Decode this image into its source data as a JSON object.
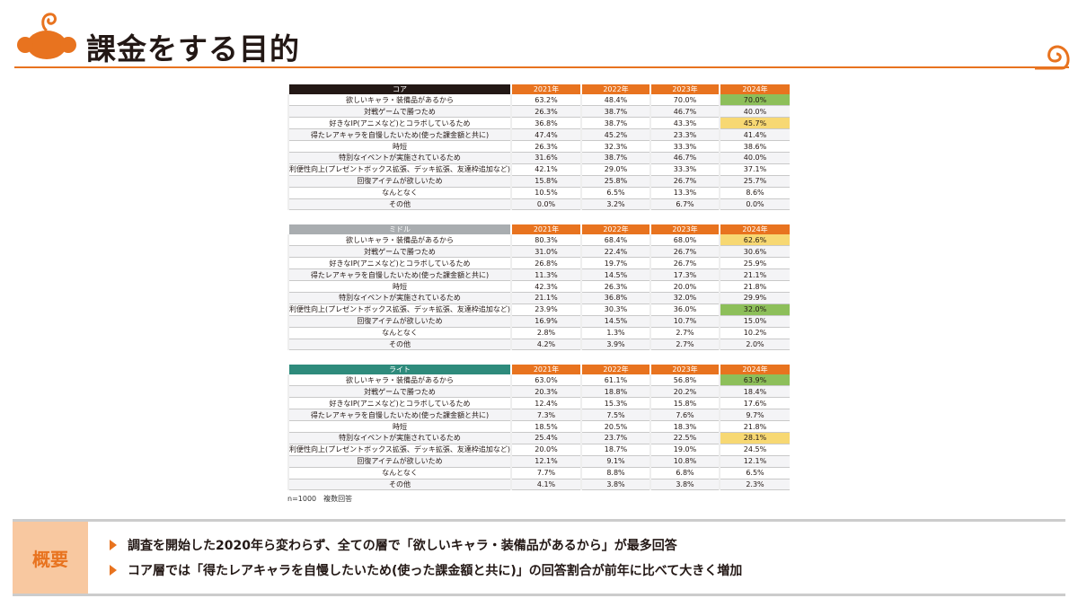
{
  "header": {
    "title": "課金をする目的"
  },
  "colors": {
    "accent": "#e8731f",
    "core": "#231815",
    "middle": "#a9adb0",
    "light": "#2e8b7c",
    "highlight_green": "#8dbf5a",
    "highlight_yellow": "#f7d873"
  },
  "years": [
    "2021年",
    "2022年",
    "2023年",
    "2024年"
  ],
  "row_labels": [
    "欲しいキャラ・装備品があるから",
    "対戦ゲームで勝つため",
    "好きなIP(アニメなど)とコラボしているため",
    "得たレアキャラを自慢したいため(使った課金額と共に)",
    "時短",
    "特別なイベントが実施されているため",
    "利便性向上(プレゼントボックス拡張、デッキ拡張、友達枠追加など)",
    "回復アイテムが欲しいため",
    "なんとなく",
    "その他"
  ],
  "tables": [
    {
      "segment": "コア",
      "color": "#231815",
      "rows": [
        [
          "63.2%",
          "48.4%",
          "70.0%",
          "70.0%"
        ],
        [
          "26.3%",
          "38.7%",
          "46.7%",
          "40.0%"
        ],
        [
          "36.8%",
          "38.7%",
          "43.3%",
          "45.7%"
        ],
        [
          "47.4%",
          "45.2%",
          "23.3%",
          "41.4%"
        ],
        [
          "26.3%",
          "32.3%",
          "33.3%",
          "38.6%"
        ],
        [
          "31.6%",
          "38.7%",
          "46.7%",
          "40.0%"
        ],
        [
          "42.1%",
          "29.0%",
          "33.3%",
          "37.1%"
        ],
        [
          "15.8%",
          "25.8%",
          "26.7%",
          "25.7%"
        ],
        [
          "10.5%",
          "6.5%",
          "13.3%",
          "8.6%"
        ],
        [
          "0.0%",
          "3.2%",
          "6.7%",
          "0.0%"
        ]
      ],
      "highlights": {
        "0": "green",
        "2": "yellow"
      }
    },
    {
      "segment": "ミドル",
      "color": "#a9adb0",
      "rows": [
        [
          "80.3%",
          "68.4%",
          "68.0%",
          "62.6%"
        ],
        [
          "31.0%",
          "22.4%",
          "26.7%",
          "30.6%"
        ],
        [
          "26.8%",
          "19.7%",
          "26.7%",
          "25.9%"
        ],
        [
          "11.3%",
          "14.5%",
          "17.3%",
          "21.1%"
        ],
        [
          "42.3%",
          "26.3%",
          "20.0%",
          "21.8%"
        ],
        [
          "21.1%",
          "36.8%",
          "32.0%",
          "29.9%"
        ],
        [
          "23.9%",
          "30.3%",
          "36.0%",
          "32.0%"
        ],
        [
          "16.9%",
          "14.5%",
          "10.7%",
          "15.0%"
        ],
        [
          "2.8%",
          "1.3%",
          "2.7%",
          "10.2%"
        ],
        [
          "4.2%",
          "3.9%",
          "2.7%",
          "2.0%"
        ]
      ],
      "highlights": {
        "0": "yellow",
        "6": "green"
      }
    },
    {
      "segment": "ライト",
      "color": "#2e8b7c",
      "rows": [
        [
          "63.0%",
          "61.1%",
          "56.8%",
          "63.9%"
        ],
        [
          "20.3%",
          "18.8%",
          "20.2%",
          "18.4%"
        ],
        [
          "12.4%",
          "15.3%",
          "15.8%",
          "17.6%"
        ],
        [
          "7.3%",
          "7.5%",
          "7.6%",
          "9.7%"
        ],
        [
          "18.5%",
          "20.5%",
          "18.3%",
          "21.8%"
        ],
        [
          "25.4%",
          "23.7%",
          "22.5%",
          "28.1%"
        ],
        [
          "20.0%",
          "18.7%",
          "19.0%",
          "24.5%"
        ],
        [
          "12.1%",
          "9.1%",
          "10.8%",
          "12.1%"
        ],
        [
          "7.7%",
          "8.8%",
          "6.8%",
          "6.5%"
        ],
        [
          "4.1%",
          "3.8%",
          "3.8%",
          "2.3%"
        ]
      ],
      "highlights": {
        "0": "green",
        "5": "yellow"
      }
    }
  ],
  "note": "n=1000　複数回答",
  "summary": {
    "label": "概要",
    "items": [
      "調査を開始した2020年ら変わらず、全ての層で「欲しいキャラ・装備品があるから」が最多回答",
      "コア層では「得たレアキャラを自慢したいため(使った課金額と共に)」の回答割合が前年に比べて大きく増加"
    ]
  }
}
